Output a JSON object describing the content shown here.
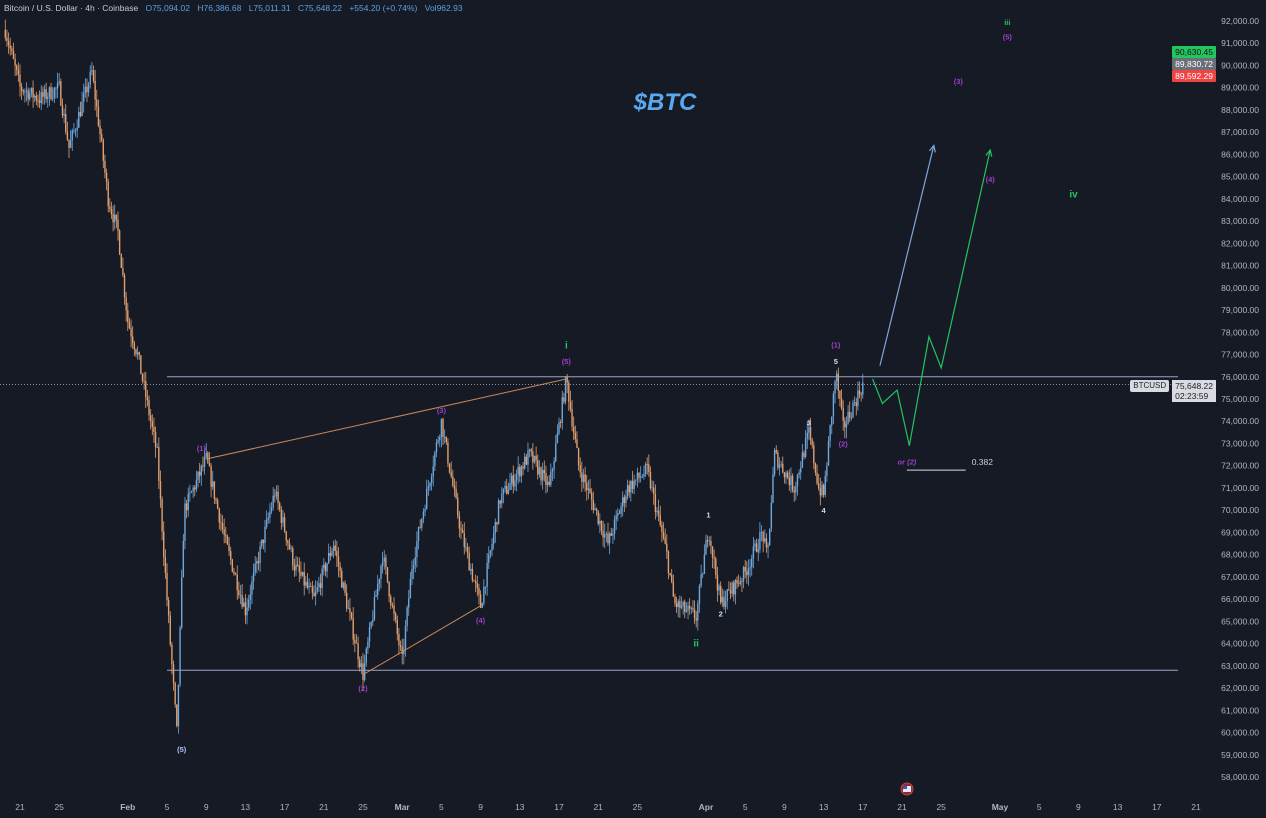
{
  "header": {
    "symbol": "Bitcoin / U.S. Dollar · 4h · Coinbase",
    "open": "O75,094.02",
    "high": "H76,386.68",
    "low": "L75,011.31",
    "close": "C75,648.22",
    "change": "+554.20 (+0.74%)",
    "volume": "Vol962.93"
  },
  "price_badges": [
    {
      "value": "90,630.45",
      "color": "#22c55e"
    },
    {
      "value": "89,830.72",
      "color": "#6b6f78"
    },
    {
      "value": "89,592.29",
      "color": "#ef4444"
    }
  ],
  "last_price": {
    "symbol": "BTCUSD",
    "value": "75,648.22",
    "countdown": "02:23:59"
  },
  "colors": {
    "background": "#161a25",
    "up": "#6fa8dc",
    "down": "#e0a070",
    "axis_text": "#b2b5be",
    "wave_purple": "#9c3fc9",
    "wave_green": "#22c55e",
    "projection_blue": "#7da7d9",
    "level_line": "#9aa3c7"
  },
  "chart_data": {
    "type": "candlestick",
    "title": "$BTC",
    "timeframe": "4h",
    "ylim": [
      58000,
      92000
    ],
    "y_ticks": [
      "92,000.00",
      "91,000.00",
      "90,000.00",
      "89,000.00",
      "88,000.00",
      "87,000.00",
      "86,000.00",
      "85,000.00",
      "84,000.00",
      "83,000.00",
      "82,000.00",
      "81,000.00",
      "80,000.00",
      "79,000.00",
      "78,000.00",
      "77,000.00",
      "76,000.00",
      "75,000.00",
      "74,000.00",
      "73,000.00",
      "72,000.00",
      "71,000.00",
      "70,000.00",
      "69,000.00",
      "68,000.00",
      "67,000.00",
      "66,000.00",
      "65,000.00",
      "64,000.00",
      "63,000.00",
      "62,000.00",
      "61,000.00",
      "60,000.00",
      "59,000.00",
      "58,000.00"
    ],
    "x_ticks": [
      {
        "label": "21",
        "date": "01-21"
      },
      {
        "label": "25",
        "date": "01-25"
      },
      {
        "label": "Feb",
        "date": "02-01"
      },
      {
        "label": "5",
        "date": "02-05"
      },
      {
        "label": "9",
        "date": "02-09"
      },
      {
        "label": "13",
        "date": "02-13"
      },
      {
        "label": "17",
        "date": "02-17"
      },
      {
        "label": "21",
        "date": "02-21"
      },
      {
        "label": "25",
        "date": "02-25"
      },
      {
        "label": "Mar",
        "date": "03-01"
      },
      {
        "label": "5",
        "date": "03-05"
      },
      {
        "label": "9",
        "date": "03-09"
      },
      {
        "label": "13",
        "date": "03-13"
      },
      {
        "label": "17",
        "date": "03-17"
      },
      {
        "label": "21",
        "date": "03-21"
      },
      {
        "label": "25",
        "date": "03-25"
      },
      {
        "label": "Apr",
        "date": "04-01"
      },
      {
        "label": "5",
        "date": "04-05"
      },
      {
        "label": "9",
        "date": "04-09"
      },
      {
        "label": "13",
        "date": "04-13"
      },
      {
        "label": "17",
        "date": "04-17"
      },
      {
        "label": "21",
        "date": "04-21"
      },
      {
        "label": "25",
        "date": "04-25"
      },
      {
        "label": "May",
        "date": "05-01"
      },
      {
        "label": "5",
        "date": "05-05"
      },
      {
        "label": "9",
        "date": "05-09"
      },
      {
        "label": "13",
        "date": "05-13"
      },
      {
        "label": "17",
        "date": "05-17"
      },
      {
        "label": "21",
        "date": "05-21"
      }
    ],
    "price_path": [
      [
        "01-19 12:00",
        91600
      ],
      [
        "01-21 00:00",
        89000
      ],
      [
        "01-23 00:00",
        88500
      ],
      [
        "01-25 00:00",
        89000
      ],
      [
        "01-26 00:00",
        86300
      ],
      [
        "01-28 08:00",
        89700
      ],
      [
        "01-29 00:00",
        87500
      ],
      [
        "01-30 00:00",
        84000
      ],
      [
        "01-31 00:00",
        82500
      ],
      [
        "02-01 00:00",
        78500
      ],
      [
        "02-02 00:00",
        77000
      ],
      [
        "02-04 00:00",
        72500
      ],
      [
        "02-05 00:00",
        66000
      ],
      [
        "02-06 00:00",
        60000
      ],
      [
        "02-06 18:00",
        70000
      ],
      [
        "02-09 00:00",
        72300
      ],
      [
        "02-11 00:00",
        68500
      ],
      [
        "02-13 00:00",
        65500
      ],
      [
        "02-16 00:00",
        70800
      ],
      [
        "02-18 00:00",
        67500
      ],
      [
        "02-20 00:00",
        66000
      ],
      [
        "02-22 00:00",
        68500
      ],
      [
        "02-24 00:00",
        64500
      ],
      [
        "02-25 00:00",
        62600
      ],
      [
        "02-27 00:00",
        68000
      ],
      [
        "03-01 00:00",
        63200
      ],
      [
        "03-02 00:00",
        67500
      ],
      [
        "03-05 00:00",
        74000
      ],
      [
        "03-07 00:00",
        69000
      ],
      [
        "03-09 00:00",
        65700
      ],
      [
        "03-11 00:00",
        70500
      ],
      [
        "03-14 00:00",
        72500
      ],
      [
        "03-16 00:00",
        71000
      ],
      [
        "03-17 18:00",
        75900
      ],
      [
        "03-19 00:00",
        72000
      ],
      [
        "03-22 00:00",
        68500
      ],
      [
        "03-24 00:00",
        71000
      ],
      [
        "03-26 00:00",
        71800
      ],
      [
        "03-28 00:00",
        68000
      ],
      [
        "03-28 18:00",
        65800
      ],
      [
        "03-31 00:00",
        65200
      ],
      [
        "04-01 06:00",
        69200
      ],
      [
        "04-02 12:00",
        65800
      ],
      [
        "04-05 00:00",
        67200
      ],
      [
        "04-06 18:00",
        69000
      ],
      [
        "04-07 06:00",
        67800
      ],
      [
        "04-08 00:00",
        72500
      ],
      [
        "04-10 00:00",
        71000
      ],
      [
        "04-11 12:00",
        73500
      ],
      [
        "04-12 12:00",
        71000
      ],
      [
        "04-13 00:00",
        70700
      ],
      [
        "04-14 06:00",
        76200
      ],
      [
        "04-15 00:00",
        73700
      ],
      [
        "04-17 00:00",
        75650
      ]
    ],
    "levels": [
      {
        "price": 76000,
        "from": "02-05 00:00",
        "color": "#9aa3c7"
      },
      {
        "price": 62800,
        "from": "02-05 00:00",
        "color": "#9aa3c7"
      }
    ],
    "trendlines": [
      {
        "points": [
          [
            "02-09 00:00",
            72300
          ],
          [
            "03-17 18:00",
            75900
          ]
        ],
        "color": "#c98a5a"
      },
      {
        "points": [
          [
            "02-25 00:00",
            62600
          ],
          [
            "03-09 00:00",
            65700
          ]
        ],
        "color": "#c98a5a"
      }
    ],
    "fib_level": {
      "label": "0.382",
      "price": 71800,
      "from": "04-21 12:00",
      "to": "04-27 12:00"
    },
    "projections": [
      {
        "color": "#7da7d9",
        "arrow": true,
        "points": [
          [
            "04-18 18:00",
            76500
          ],
          [
            "04-24 06:00",
            86400
          ]
        ]
      },
      {
        "color": "#22c55e",
        "arrow": true,
        "points": [
          [
            "04-18 00:00",
            75900
          ],
          [
            "04-19 00:00",
            74800
          ],
          [
            "04-20 12:00",
            75400
          ],
          [
            "04-21 18:00",
            72900
          ],
          [
            "04-23 18:00",
            77800
          ],
          [
            "04-25 00:00",
            76400
          ],
          [
            "04-30 00:00",
            86200
          ]
        ]
      }
    ],
    "wave_labels": [
      {
        "text": "(5)",
        "date": "02-06 12:00",
        "price": 59250,
        "color": "#a9c4ef"
      },
      {
        "text": "(1)",
        "date": "02-08 12:00",
        "price": 72800,
        "color": "#9c3fc9"
      },
      {
        "text": "(2)",
        "date": "02-25 00:00",
        "price": 62000,
        "color": "#9c3fc9"
      },
      {
        "text": "(3)",
        "date": "03-05 00:00",
        "price": 74500,
        "color": "#9c3fc9"
      },
      {
        "text": "(4)",
        "date": "03-09 00:00",
        "price": 65050,
        "color": "#9c3fc9"
      },
      {
        "text": "(5)",
        "date": "03-17 18:00",
        "price": 76700,
        "color": "#9c3fc9"
      },
      {
        "text": "i",
        "date": "03-17 18:00",
        "price": 77400,
        "color": "#22c55e"
      },
      {
        "text": "ii",
        "date": "03-31 00:00",
        "price": 64000,
        "color": "#22c55e"
      },
      {
        "text": "1",
        "date": "04-01 06:00",
        "price": 69800,
        "color": "#d8dbe2"
      },
      {
        "text": "2",
        "date": "04-02 12:00",
        "price": 65350,
        "color": "#d8dbe2"
      },
      {
        "text": "3",
        "date": "04-11 12:00",
        "price": 73950,
        "color": "#d8dbe2"
      },
      {
        "text": "4",
        "date": "04-13 00:00",
        "price": 70000,
        "color": "#d8dbe2"
      },
      {
        "text": "5",
        "date": "04-14 06:00",
        "price": 76700,
        "color": "#d8dbe2"
      },
      {
        "text": "(1)",
        "date": "04-14 06:00",
        "price": 77450,
        "color": "#9c3fc9"
      },
      {
        "text": "(2)",
        "date": "04-15 00:00",
        "price": 73000,
        "color": "#9c3fc9"
      },
      {
        "text": "or (2)",
        "date": "04-21 12:00",
        "price": 72200,
        "color": "#9c3fc9"
      },
      {
        "text": "(3)",
        "date": "04-26 18:00",
        "price": 89300,
        "color": "#9c3fc9"
      },
      {
        "text": "(4)",
        "date": "04-30 00:00",
        "price": 84900,
        "color": "#9c3fc9"
      },
      {
        "text": "(5)",
        "date": "05-01 18:00",
        "price": 91300,
        "color": "#9c3fc9"
      },
      {
        "text": "iii",
        "date": "05-01 18:00",
        "price": 91950,
        "color": "#22c55e"
      },
      {
        "text": "iv",
        "date": "05-08 12:00",
        "price": 84200,
        "color": "#22c55e"
      }
    ]
  }
}
